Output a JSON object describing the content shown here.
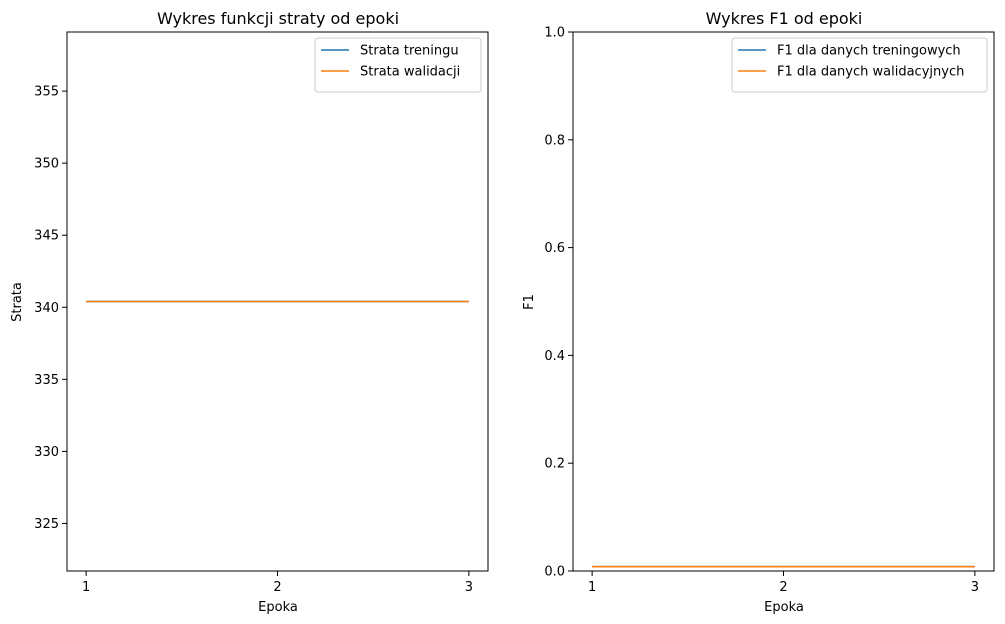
{
  "chart_data": [
    {
      "type": "line",
      "title": "Wykres funkcji straty od epoki",
      "xlabel": "Epoka",
      "ylabel": "Strata",
      "x": [
        1,
        2,
        3
      ],
      "xticks": [
        1,
        2,
        3
      ],
      "yticks": [
        325,
        330,
        335,
        340,
        345,
        350,
        355
      ],
      "xlim": [
        0.9,
        3.1
      ],
      "ylim": [
        321.7,
        359.1
      ],
      "grid": false,
      "legend_position": "top-right",
      "series": [
        {
          "name": "Strata treningu",
          "color": "#1f77b4",
          "values": [
            340.4,
            340.4,
            340.4
          ]
        },
        {
          "name": "Strata walidacji",
          "color": "#ff7f0e",
          "values": [
            340.4,
            340.4,
            340.4
          ]
        }
      ]
    },
    {
      "type": "line",
      "title": "Wykres F1 od epoki",
      "xlabel": "Epoka",
      "ylabel": "F1",
      "x": [
        1,
        2,
        3
      ],
      "xticks": [
        1,
        2,
        3
      ],
      "yticks": [
        0.0,
        0.2,
        0.4,
        0.6,
        0.8,
        1.0
      ],
      "ytick_decimals": 1,
      "xlim": [
        0.9,
        3.1
      ],
      "ylim": [
        0.0,
        1.0
      ],
      "grid": false,
      "legend_position": "top-right",
      "series": [
        {
          "name": "F1 dla danych treningowych",
          "color": "#1f77b4",
          "values": [
            0.008,
            0.008,
            0.008
          ]
        },
        {
          "name": "F1 dla danych walidacyjnych",
          "color": "#ff7f0e",
          "values": [
            0.008,
            0.008,
            0.008
          ]
        }
      ]
    }
  ]
}
